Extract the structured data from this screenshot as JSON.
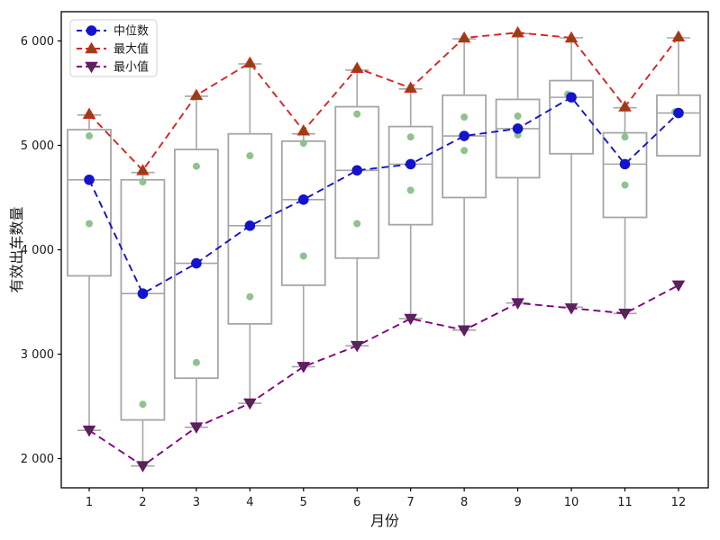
{
  "figure": {
    "title": "",
    "background": "#ffffff"
  },
  "chart_data": {
    "type": "box+line",
    "title": "",
    "xlabel": "月份",
    "ylabel": "有效出车数量",
    "grid": false,
    "legend_position": "upper-left",
    "categories": [
      "1",
      "2",
      "3",
      "4",
      "5",
      "6",
      "7",
      "8",
      "9",
      "10",
      "11",
      "12"
    ],
    "xticks": [
      "1",
      "2",
      "3",
      "4",
      "5",
      "6",
      "7",
      "8",
      "9",
      "10",
      "11",
      "12"
    ],
    "yticks": [
      2000,
      3000,
      4000,
      5000,
      6000
    ],
    "ytick_labels": [
      "2 000",
      "3 000",
      "4 000",
      "5 000",
      "6 000"
    ],
    "ylim": [
      1720,
      6280
    ],
    "series": [
      {
        "name": "中位数",
        "type": "line",
        "linestyle": "dashed",
        "color": "#1414cc",
        "marker": "circle",
        "marker_fill": "#1414cc",
        "values": [
          4670,
          3580,
          3870,
          4230,
          4480,
          4760,
          4820,
          5090,
          5160,
          5460,
          4820,
          5310
        ]
      },
      {
        "name": "最大值",
        "type": "line",
        "linestyle": "dashed",
        "color": "#dd2222",
        "marker": "triangle-up",
        "marker_fill": "#8b4513",
        "values": [
          5300,
          4760,
          5480,
          5790,
          5140,
          5740,
          5550,
          6030,
          6080,
          6030,
          5370,
          6040
        ]
      },
      {
        "name": "最小值",
        "type": "line",
        "linestyle": "dashed",
        "color": "#800080",
        "marker": "triangle-down",
        "marker_fill": "#4b2e4b",
        "values": [
          2270,
          1930,
          2300,
          2530,
          2880,
          3080,
          3340,
          3230,
          3490,
          3440,
          3390,
          3660
        ]
      }
    ],
    "boxes": [
      {
        "month": "1",
        "q1": 3750,
        "median": 4670,
        "q3": 5150,
        "whisker_low": 2270,
        "whisker_high": 5290,
        "points": [
          5090,
          4250
        ]
      },
      {
        "month": "2",
        "q1": 2370,
        "median": 3580,
        "q3": 4670,
        "whisker_low": 1930,
        "whisker_high": 4740,
        "points": [
          4650,
          2520
        ]
      },
      {
        "month": "3",
        "q1": 2770,
        "median": 3870,
        "q3": 4960,
        "whisker_low": 2300,
        "whisker_high": 5470,
        "points": [
          4800,
          2920
        ]
      },
      {
        "month": "4",
        "q1": 3290,
        "median": 4230,
        "q3": 5110,
        "whisker_low": 2530,
        "whisker_high": 5780,
        "points": [
          4900,
          3550
        ]
      },
      {
        "month": "5",
        "q1": 3660,
        "median": 4480,
        "q3": 5040,
        "whisker_low": 2880,
        "whisker_high": 5110,
        "points": [
          5020,
          3940
        ]
      },
      {
        "month": "6",
        "q1": 3920,
        "median": 4760,
        "q3": 5370,
        "whisker_low": 3080,
        "whisker_high": 5720,
        "points": [
          5300,
          4250
        ]
      },
      {
        "month": "7",
        "q1": 4240,
        "median": 4820,
        "q3": 5180,
        "whisker_low": 3340,
        "whisker_high": 5540,
        "points": [
          5080,
          4570
        ]
      },
      {
        "month": "8",
        "q1": 4500,
        "median": 5090,
        "q3": 5480,
        "whisker_low": 3230,
        "whisker_high": 6020,
        "points": [
          5270,
          4950
        ]
      },
      {
        "month": "9",
        "q1": 4690,
        "median": 5160,
        "q3": 5440,
        "whisker_low": 3490,
        "whisker_high": 6070,
        "points": [
          5280,
          5100
        ]
      },
      {
        "month": "10",
        "q1": 4920,
        "median": 5460,
        "q3": 5620,
        "whisker_low": 3450,
        "whisker_high": 6030,
        "points": [
          5490
        ]
      },
      {
        "month": "11",
        "q1": 4310,
        "median": 4820,
        "q3": 5120,
        "whisker_low": 3390,
        "whisker_high": 5360,
        "points": [
          5080,
          4620
        ]
      },
      {
        "month": "12",
        "q1": 4900,
        "median": 5310,
        "q3": 5480,
        "whisker_low": null,
        "whisker_high": 6030,
        "points": [
          5320
        ]
      }
    ],
    "colors": {
      "box_edge": "#a6a6a6",
      "whisker": "#a6a6a6",
      "scatter_point": "#8abf8a",
      "axis": "#000000",
      "median_line": "#1414cc",
      "max_line": "#dd2222",
      "min_line": "#800080"
    },
    "legend": [
      {
        "label": "中位数",
        "color": "#1414cc",
        "marker": "circle",
        "marker_fill": "#1414cc"
      },
      {
        "label": "最大值",
        "color": "#dd2222",
        "marker": "triangle-up",
        "marker_fill": "#8b4513"
      },
      {
        "label": "最小值",
        "color": "#800080",
        "marker": "triangle-down",
        "marker_fill": "#4b2e4b"
      }
    ]
  }
}
